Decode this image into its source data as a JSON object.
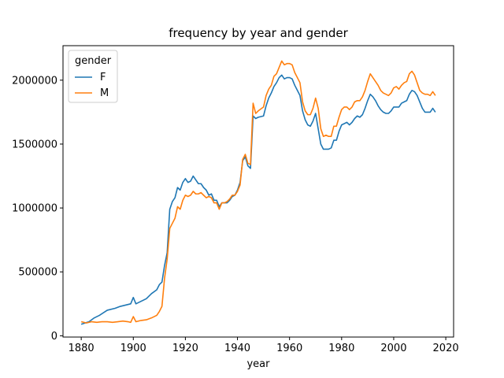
{
  "chart_data": {
    "type": "line",
    "title": "frequency by year and gender",
    "xlabel": "year",
    "ylabel": "",
    "xlim": [
      1873,
      2023
    ],
    "ylim": [
      -10000,
      2270000
    ],
    "xticks": [
      1880,
      1900,
      1920,
      1940,
      1960,
      1980,
      2000,
      2020
    ],
    "yticks": [
      0,
      500000,
      1000000,
      1500000,
      2000000
    ],
    "grid": false,
    "legend": {
      "title": "gender",
      "placement": "top-left"
    },
    "series": [
      {
        "name": "F",
        "color": "#1f77b4",
        "x": [
          1880,
          1883,
          1885,
          1887,
          1890,
          1893,
          1895,
          1897,
          1899,
          1900,
          1901,
          1903,
          1905,
          1907,
          1909,
          1910,
          1911,
          1912,
          1913,
          1914,
          1915,
          1916,
          1917,
          1918,
          1919,
          1920,
          1921,
          1922,
          1923,
          1924,
          1925,
          1926,
          1927,
          1928,
          1929,
          1930,
          1931,
          1932,
          1933,
          1934,
          1935,
          1936,
          1937,
          1938,
          1939,
          1940,
          1941,
          1942,
          1943,
          1944,
          1945,
          1946,
          1947,
          1948,
          1950,
          1951,
          1952,
          1953,
          1954,
          1955,
          1956,
          1957,
          1958,
          1959,
          1960,
          1961,
          1962,
          1963,
          1964,
          1965,
          1966,
          1967,
          1968,
          1969,
          1970,
          1971,
          1972,
          1973,
          1974,
          1975,
          1976,
          1977,
          1978,
          1979,
          1980,
          1981,
          1982,
          1983,
          1984,
          1985,
          1986,
          1987,
          1988,
          1989,
          1990,
          1991,
          1992,
          1993,
          1994,
          1995,
          1996,
          1997,
          1998,
          1999,
          2000,
          2001,
          2002,
          2003,
          2004,
          2005,
          2006,
          2007,
          2008,
          2009,
          2010,
          2011,
          2012,
          2013,
          2014,
          2015,
          2016
        ],
        "values": [
          90000,
          110000,
          140000,
          160000,
          200000,
          215000,
          230000,
          240000,
          250000,
          300000,
          250000,
          270000,
          290000,
          330000,
          360000,
          400000,
          420000,
          550000,
          650000,
          990000,
          1050000,
          1080000,
          1160000,
          1140000,
          1200000,
          1230000,
          1200000,
          1210000,
          1250000,
          1220000,
          1190000,
          1190000,
          1160000,
          1140000,
          1100000,
          1110000,
          1060000,
          1060000,
          1010000,
          1040000,
          1040000,
          1040000,
          1060000,
          1090000,
          1100000,
          1140000,
          1200000,
          1370000,
          1400000,
          1330000,
          1310000,
          1720000,
          1700000,
          1710000,
          1720000,
          1800000,
          1860000,
          1900000,
          1950000,
          1980000,
          2020000,
          2040000,
          2010000,
          2020000,
          2020000,
          2010000,
          1960000,
          1920000,
          1880000,
          1760000,
          1690000,
          1650000,
          1640000,
          1680000,
          1740000,
          1620000,
          1500000,
          1460000,
          1460000,
          1460000,
          1470000,
          1530000,
          1530000,
          1600000,
          1650000,
          1660000,
          1670000,
          1650000,
          1670000,
          1700000,
          1720000,
          1710000,
          1730000,
          1780000,
          1840000,
          1890000,
          1870000,
          1840000,
          1800000,
          1770000,
          1750000,
          1740000,
          1740000,
          1760000,
          1790000,
          1790000,
          1790000,
          1820000,
          1830000,
          1840000,
          1890000,
          1920000,
          1910000,
          1880000,
          1830000,
          1780000,
          1750000,
          1750000,
          1750000,
          1780000,
          1750000
        ],
        "smooth": false
      },
      {
        "name": "M",
        "color": "#ff7f0e",
        "x": [
          1880,
          1882,
          1884,
          1886,
          1888,
          1890,
          1892,
          1894,
          1896,
          1898,
          1899,
          1900,
          1901,
          1903,
          1905,
          1907,
          1909,
          1910,
          1911,
          1912,
          1913,
          1914,
          1915,
          1916,
          1917,
          1918,
          1919,
          1920,
          1921,
          1922,
          1923,
          1924,
          1925,
          1926,
          1927,
          1928,
          1929,
          1930,
          1931,
          1932,
          1933,
          1934,
          1935,
          1936,
          1937,
          1938,
          1939,
          1940,
          1941,
          1942,
          1943,
          1944,
          1945,
          1946,
          1947,
          1948,
          1950,
          1951,
          1952,
          1953,
          1954,
          1955,
          1956,
          1957,
          1958,
          1959,
          1960,
          1961,
          1962,
          1963,
          1964,
          1965,
          1966,
          1967,
          1968,
          1969,
          1970,
          1971,
          1972,
          1973,
          1974,
          1975,
          1976,
          1977,
          1978,
          1979,
          1980,
          1981,
          1982,
          1983,
          1984,
          1985,
          1986,
          1987,
          1988,
          1989,
          1990,
          1991,
          1992,
          1993,
          1994,
          1995,
          1996,
          1997,
          1998,
          1999,
          2000,
          2001,
          2002,
          2003,
          2004,
          2005,
          2006,
          2007,
          2008,
          2009,
          2010,
          2011,
          2012,
          2013,
          2014,
          2015,
          2016
        ],
        "values": [
          110000,
          100000,
          110000,
          105000,
          110000,
          110000,
          105000,
          110000,
          115000,
          110000,
          105000,
          150000,
          110000,
          120000,
          125000,
          140000,
          160000,
          190000,
          230000,
          450000,
          600000,
          840000,
          880000,
          920000,
          1010000,
          990000,
          1060000,
          1100000,
          1090000,
          1100000,
          1130000,
          1110000,
          1110000,
          1120000,
          1100000,
          1080000,
          1090000,
          1080000,
          1040000,
          1040000,
          990000,
          1040000,
          1040000,
          1050000,
          1070000,
          1100000,
          1100000,
          1130000,
          1180000,
          1380000,
          1420000,
          1350000,
          1340000,
          1820000,
          1740000,
          1760000,
          1790000,
          1880000,
          1930000,
          1960000,
          2030000,
          2050000,
          2100000,
          2150000,
          2120000,
          2130000,
          2130000,
          2120000,
          2060000,
          2020000,
          1980000,
          1830000,
          1760000,
          1730000,
          1730000,
          1780000,
          1860000,
          1780000,
          1620000,
          1560000,
          1570000,
          1560000,
          1560000,
          1640000,
          1640000,
          1710000,
          1770000,
          1790000,
          1790000,
          1770000,
          1790000,
          1830000,
          1840000,
          1840000,
          1870000,
          1920000,
          1990000,
          2050000,
          2020000,
          1990000,
          1960000,
          1920000,
          1900000,
          1890000,
          1880000,
          1900000,
          1940000,
          1950000,
          1930000,
          1960000,
          1980000,
          1990000,
          2050000,
          2070000,
          2040000,
          1980000,
          1920000,
          1900000,
          1890000,
          1890000,
          1880000,
          1910000,
          1880000
        ],
        "smooth": false
      }
    ]
  }
}
